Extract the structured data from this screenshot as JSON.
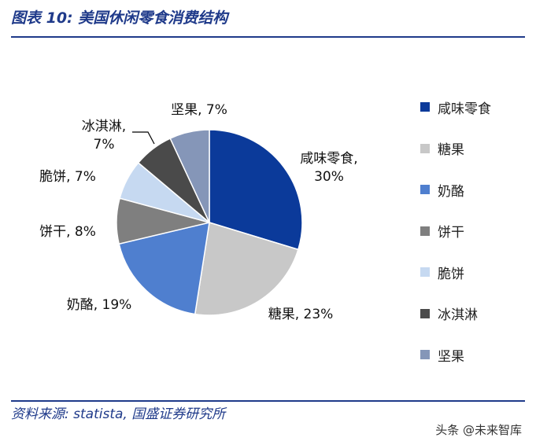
{
  "figure": {
    "title": "图表 10:  美国休闲零食消费结构",
    "source": "资料来源: statista, 国盛证券研究所",
    "watermark": "头条 @未来智库"
  },
  "chart_data": {
    "type": "pie",
    "start_angle_deg": 0,
    "direction": "clockwise",
    "slices": [
      {
        "name": "咸味零食",
        "value": 30,
        "label": "咸味零食,\n30%",
        "color": "#0b3a9a"
      },
      {
        "name": "糖果",
        "value": 23,
        "label": "糖果, 23%",
        "color": "#c8c8c8"
      },
      {
        "name": "奶酪",
        "value": 19,
        "label": "奶酪, 19%",
        "color": "#4f7fcf"
      },
      {
        "name": "饼干",
        "value": 8,
        "label": "饼干, 8%",
        "color": "#7f7f7f"
      },
      {
        "name": "脆饼",
        "value": 7,
        "label": "脆饼, 7%",
        "color": "#c6d9f1"
      },
      {
        "name": "冰淇淋",
        "value": 7,
        "label": "冰淇淋,\n7%",
        "color": "#4a4a4a"
      },
      {
        "name": "坚果",
        "value": 7,
        "label": "坚果, 7%",
        "color": "#8596b8"
      }
    ],
    "legend": {
      "position": "right",
      "entries": [
        "咸味零食",
        "糖果",
        "奶酪",
        "饼干",
        "脆饼",
        "冰淇淋",
        "坚果"
      ]
    }
  }
}
